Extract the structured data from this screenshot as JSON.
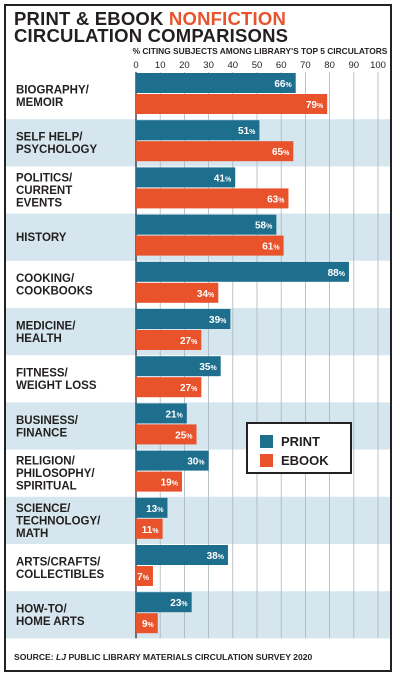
{
  "title": {
    "line1_pre": "PRINT & EBOOK ",
    "line1_accent": "NONFICTION",
    "line2": "CIRCULATION COMPARISONS"
  },
  "colors": {
    "print": "#1e6f8e",
    "ebook": "#e8532c",
    "accent": "#e8532c",
    "band": "#d6e6ee",
    "grid": "#a9b4bb",
    "text": "#231f20"
  },
  "legend": {
    "print_label": "PRINT",
    "ebook_label": "EBOOK"
  },
  "source": {
    "prefix": "SOURCE: ",
    "italic": "LJ",
    "rest": " PUBLIC LIBRARY MATERIALS CIRCULATION SURVEY 2020"
  },
  "chart_data": {
    "type": "bar",
    "orientation": "horizontal",
    "title": "PRINT & EBOOK NONFICTION CIRCULATION COMPARISONS",
    "xlabel": "% CITING SUBJECTS AMONG LIBRARY'S TOP 5 CIRCULATORS",
    "xlim": [
      0,
      100
    ],
    "xticks": [
      "0",
      "10",
      "20",
      "30",
      "40",
      "50",
      "60",
      "70",
      "80",
      "90",
      "100"
    ],
    "grid": true,
    "legend_position": "center-right",
    "value_suffix": "%",
    "categories": [
      [
        "BIOGRAPHY/",
        "MEMOIR"
      ],
      [
        "SELF HELP/",
        "PSYCHOLOGY"
      ],
      [
        "POLITICS/",
        "CURRENT",
        "EVENTS"
      ],
      [
        "HISTORY"
      ],
      [
        "COOKING/",
        "COOKBOOKS"
      ],
      [
        "MEDICINE/",
        "HEALTH"
      ],
      [
        "FITNESS/",
        "WEIGHT LOSS"
      ],
      [
        "BUSINESS/",
        "FINANCE"
      ],
      [
        "RELIGION/",
        "PHILOSOPHY/",
        "SPIRITUAL"
      ],
      [
        "SCIENCE/",
        "TECHNOLOGY/",
        "MATH"
      ],
      [
        "ARTS/CRAFTS/",
        "COLLECTIBLES"
      ],
      [
        "HOW-TO/",
        "HOME ARTS"
      ]
    ],
    "series": [
      {
        "name": "PRINT",
        "values": [
          66,
          51,
          41,
          58,
          88,
          39,
          35,
          21,
          30,
          13,
          38,
          23
        ]
      },
      {
        "name": "EBOOK",
        "values": [
          79,
          65,
          63,
          61,
          34,
          27,
          27,
          25,
          19,
          11,
          7,
          9
        ]
      }
    ]
  }
}
